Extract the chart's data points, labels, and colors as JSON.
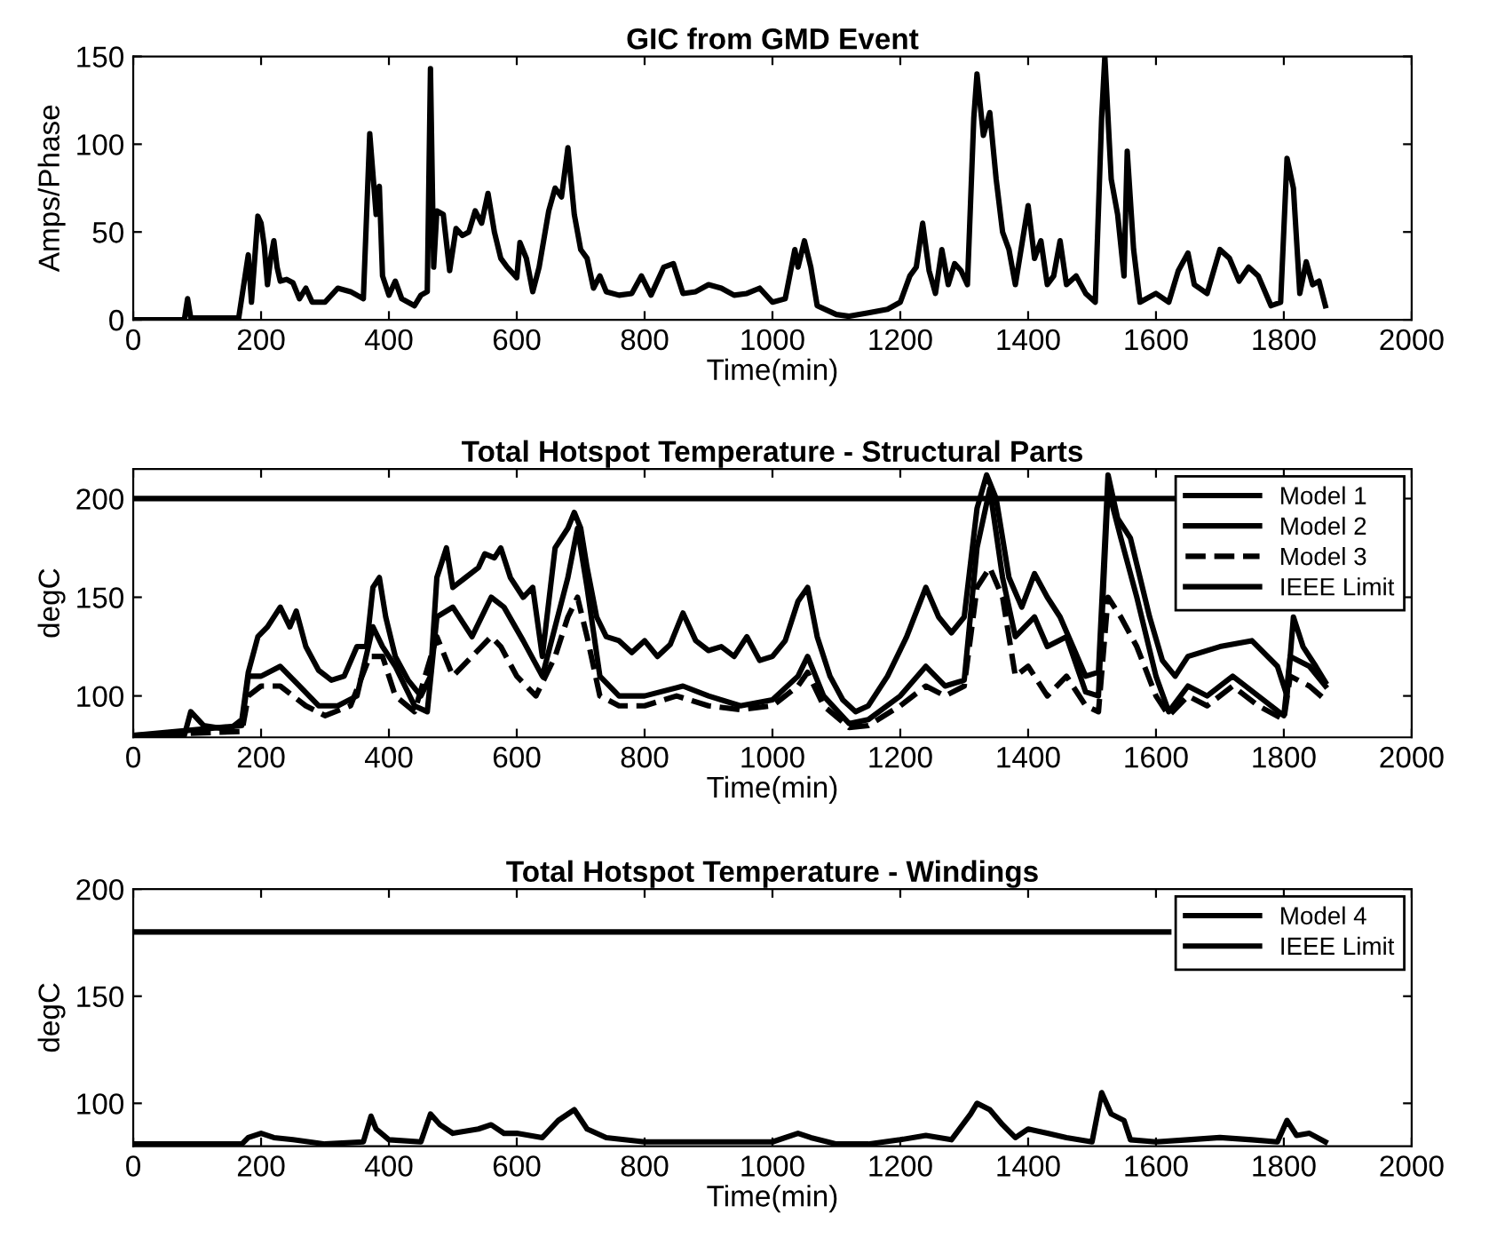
{
  "chart_data": [
    {
      "type": "line",
      "title": "GIC from GMD Event",
      "xlabel": "Time(min)",
      "ylabel": "Amps/Phase",
      "xlim": [
        0,
        2000
      ],
      "ylim": [
        0,
        150
      ],
      "xticks": [
        0,
        200,
        400,
        600,
        800,
        1000,
        1200,
        1400,
        1600,
        1800,
        2000
      ],
      "yticks": [
        0,
        50,
        100,
        150
      ],
      "grid": false,
      "legend": false,
      "series": [
        {
          "color": "#000000",
          "line_style": "solid",
          "x": [
            0,
            80,
            85,
            90,
            100,
            165,
            175,
            180,
            185,
            195,
            200,
            205,
            210,
            215,
            220,
            225,
            230,
            240,
            250,
            260,
            270,
            280,
            300,
            320,
            340,
            360,
            370,
            380,
            385,
            390,
            400,
            410,
            420,
            440,
            450,
            460,
            465,
            470,
            475,
            485,
            495,
            505,
            515,
            525,
            535,
            545,
            555,
            565,
            575,
            585,
            600,
            605,
            615,
            625,
            635,
            650,
            660,
            670,
            680,
            690,
            700,
            710,
            720,
            730,
            740,
            760,
            780,
            795,
            810,
            830,
            845,
            860,
            880,
            900,
            920,
            940,
            960,
            980,
            1000,
            1020,
            1035,
            1040,
            1050,
            1060,
            1070,
            1100,
            1120,
            1150,
            1180,
            1200,
            1215,
            1225,
            1235,
            1245,
            1255,
            1265,
            1275,
            1285,
            1295,
            1305,
            1315,
            1320,
            1330,
            1340,
            1350,
            1360,
            1370,
            1380,
            1400,
            1410,
            1420,
            1430,
            1440,
            1450,
            1460,
            1475,
            1490,
            1505,
            1515,
            1520,
            1530,
            1540,
            1550,
            1555,
            1565,
            1575,
            1600,
            1620,
            1635,
            1650,
            1660,
            1680,
            1700,
            1715,
            1730,
            1745,
            1760,
            1780,
            1795,
            1805,
            1815,
            1825,
            1835,
            1845,
            1855,
            1865
          ],
          "values": [
            0,
            0,
            12,
            1,
            1,
            1,
            25,
            37,
            10,
            59,
            55,
            42,
            20,
            35,
            45,
            30,
            22,
            23,
            21,
            12,
            18,
            10,
            10,
            18,
            16,
            12,
            106,
            60,
            76,
            25,
            14,
            22,
            12,
            8,
            14,
            16,
            143,
            30,
            62,
            60,
            28,
            52,
            48,
            50,
            62,
            55,
            72,
            50,
            35,
            30,
            24,
            44,
            35,
            16,
            30,
            62,
            75,
            70,
            98,
            60,
            40,
            35,
            18,
            25,
            16,
            14,
            15,
            25,
            14,
            30,
            32,
            15,
            16,
            20,
            18,
            14,
            15,
            18,
            10,
            12,
            40,
            30,
            45,
            30,
            8,
            3,
            2,
            4,
            6,
            10,
            25,
            30,
            55,
            28,
            15,
            40,
            20,
            32,
            28,
            20,
            115,
            140,
            105,
            118,
            80,
            50,
            40,
            20,
            65,
            35,
            45,
            20,
            25,
            45,
            20,
            25,
            15,
            10,
            115,
            150,
            80,
            60,
            25,
            96,
            40,
            10,
            15,
            10,
            28,
            38,
            20,
            15,
            40,
            35,
            22,
            30,
            25,
            8,
            10,
            92,
            75,
            15,
            33,
            20,
            22,
            8
          ]
        }
      ]
    },
    {
      "type": "line",
      "title": "Total Hotspot Temperature - Structural Parts",
      "xlabel": "Time(min)",
      "ylabel": "degC",
      "xlim": [
        0,
        2000
      ],
      "ylim": [
        79,
        215
      ],
      "xticks": [
        0,
        200,
        400,
        600,
        800,
        1000,
        1200,
        1400,
        1600,
        1800,
        2000
      ],
      "yticks": [
        100,
        150,
        200
      ],
      "grid": false,
      "legend": "top right",
      "series": [
        {
          "name": "Model 1",
          "color": "#000000",
          "line_style": "solid",
          "x": [
            0,
            80,
            90,
            110,
            150,
            170,
            180,
            195,
            210,
            230,
            245,
            255,
            270,
            290,
            310,
            330,
            350,
            365,
            375,
            385,
            395,
            410,
            430,
            450,
            465,
            475,
            490,
            500,
            520,
            540,
            550,
            565,
            575,
            590,
            610,
            625,
            640,
            660,
            680,
            690,
            700,
            710,
            725,
            740,
            760,
            780,
            800,
            820,
            840,
            860,
            880,
            900,
            920,
            940,
            960,
            980,
            1000,
            1020,
            1040,
            1055,
            1070,
            1090,
            1110,
            1130,
            1150,
            1180,
            1210,
            1240,
            1260,
            1280,
            1300,
            1320,
            1335,
            1350,
            1370,
            1390,
            1410,
            1430,
            1450,
            1470,
            1490,
            1510,
            1525,
            1540,
            1560,
            1575,
            1590,
            1610,
            1630,
            1650,
            1700,
            1750,
            1790,
            1805,
            1815,
            1830,
            1850,
            1865
          ],
          "values": [
            80,
            80,
            92,
            85,
            83,
            88,
            112,
            130,
            135,
            145,
            135,
            143,
            125,
            113,
            108,
            110,
            125,
            125,
            155,
            160,
            140,
            120,
            108,
            100,
            110,
            160,
            175,
            155,
            160,
            165,
            172,
            170,
            175,
            160,
            150,
            155,
            120,
            175,
            185,
            193,
            185,
            165,
            140,
            130,
            128,
            122,
            128,
            120,
            126,
            142,
            128,
            123,
            125,
            120,
            130,
            118,
            120,
            128,
            148,
            155,
            130,
            110,
            98,
            92,
            95,
            110,
            130,
            155,
            140,
            132,
            140,
            195,
            212,
            200,
            160,
            145,
            162,
            150,
            140,
            125,
            110,
            112,
            212,
            190,
            180,
            160,
            140,
            118,
            110,
            120,
            125,
            128,
            115,
            100,
            140,
            125,
            115,
            107
          ]
        },
        {
          "name": "Model 2",
          "color": "#000000",
          "line_style": "solid",
          "x": [
            0,
            170,
            180,
            200,
            230,
            260,
            290,
            320,
            350,
            375,
            390,
            410,
            440,
            460,
            475,
            500,
            530,
            560,
            580,
            610,
            640,
            660,
            680,
            695,
            710,
            730,
            760,
            800,
            860,
            900,
            950,
            1000,
            1040,
            1055,
            1080,
            1120,
            1150,
            1200,
            1240,
            1270,
            1300,
            1320,
            1340,
            1360,
            1380,
            1410,
            1430,
            1460,
            1490,
            1510,
            1525,
            1545,
            1570,
            1600,
            1620,
            1650,
            1680,
            1720,
            1760,
            1800,
            1810,
            1840,
            1865
          ],
          "values": [
            80,
            85,
            110,
            110,
            115,
            105,
            95,
            95,
            100,
            135,
            125,
            115,
            95,
            92,
            140,
            145,
            130,
            150,
            145,
            128,
            110,
            135,
            160,
            185,
            155,
            110,
            100,
            100,
            105,
            100,
            95,
            98,
            110,
            120,
            100,
            86,
            88,
            100,
            115,
            105,
            108,
            175,
            205,
            160,
            130,
            140,
            125,
            130,
            102,
            100,
            205,
            180,
            150,
            110,
            92,
            105,
            100,
            110,
            100,
            90,
            120,
            115,
            105
          ]
        },
        {
          "name": "Model 3",
          "color": "#000000",
          "line_style": "dashed",
          "x": [
            0,
            170,
            180,
            200,
            230,
            270,
            300,
            340,
            370,
            390,
            410,
            440,
            475,
            500,
            530,
            560,
            575,
            600,
            630,
            660,
            680,
            695,
            710,
            730,
            760,
            800,
            850,
            900,
            950,
            1000,
            1040,
            1055,
            1080,
            1120,
            1150,
            1200,
            1240,
            1270,
            1300,
            1320,
            1340,
            1360,
            1380,
            1400,
            1430,
            1460,
            1490,
            1510,
            1525,
            1545,
            1570,
            1600,
            1620,
            1650,
            1680,
            1720,
            1760,
            1800,
            1810,
            1840,
            1865
          ],
          "values": [
            80,
            82,
            100,
            105,
            105,
            95,
            90,
            95,
            120,
            120,
            100,
            92,
            130,
            110,
            120,
            130,
            125,
            110,
            100,
            120,
            140,
            150,
            130,
            100,
            95,
            95,
            100,
            95,
            93,
            95,
            105,
            112,
            95,
            84,
            85,
            95,
            105,
            100,
            105,
            155,
            165,
            150,
            110,
            115,
            100,
            110,
            95,
            92,
            150,
            140,
            125,
            100,
            90,
            100,
            95,
            105,
            95,
            88,
            110,
            105,
            98
          ]
        },
        {
          "name": "IEEE Limit",
          "color": "#000000",
          "line_style": "solid",
          "x": [
            0,
            1640
          ],
          "values": [
            200,
            200
          ]
        }
      ]
    },
    {
      "type": "line",
      "title": "Total Hotspot Temperature - Windings",
      "xlabel": "Time(min)",
      "ylabel": "degC",
      "xlim": [
        0,
        2000
      ],
      "ylim": [
        80,
        200
      ],
      "xticks": [
        0,
        200,
        400,
        600,
        800,
        1000,
        1200,
        1400,
        1600,
        1800,
        2000
      ],
      "yticks": [
        100,
        150,
        200
      ],
      "grid": false,
      "legend": "top right",
      "series": [
        {
          "name": "Model 4",
          "color": "#000000",
          "line_style": "solid",
          "x": [
            0,
            170,
            180,
            200,
            220,
            250,
            300,
            360,
            372,
            380,
            400,
            450,
            465,
            480,
            500,
            540,
            560,
            580,
            600,
            640,
            665,
            680,
            690,
            710,
            740,
            800,
            900,
            1000,
            1040,
            1060,
            1100,
            1150,
            1200,
            1240,
            1280,
            1310,
            1320,
            1340,
            1360,
            1380,
            1400,
            1430,
            1460,
            1500,
            1515,
            1530,
            1550,
            1560,
            1600,
            1650,
            1700,
            1750,
            1790,
            1805,
            1820,
            1840,
            1865
          ],
          "values": [
            81,
            81,
            84,
            86,
            84,
            83,
            81,
            82,
            94,
            88,
            83,
            82,
            95,
            90,
            86,
            88,
            90,
            86,
            86,
            84,
            92,
            95,
            97,
            88,
            84,
            82,
            82,
            82,
            86,
            84,
            81,
            81,
            83,
            85,
            83,
            95,
            100,
            97,
            90,
            84,
            88,
            86,
            84,
            82,
            105,
            95,
            92,
            83,
            82,
            83,
            84,
            83,
            82,
            92,
            85,
            86,
            82
          ]
        },
        {
          "name": "IEEE Limit",
          "color": "#000000",
          "line_style": "solid",
          "x": [
            0,
            1620
          ],
          "values": [
            180,
            180
          ]
        }
      ]
    }
  ]
}
